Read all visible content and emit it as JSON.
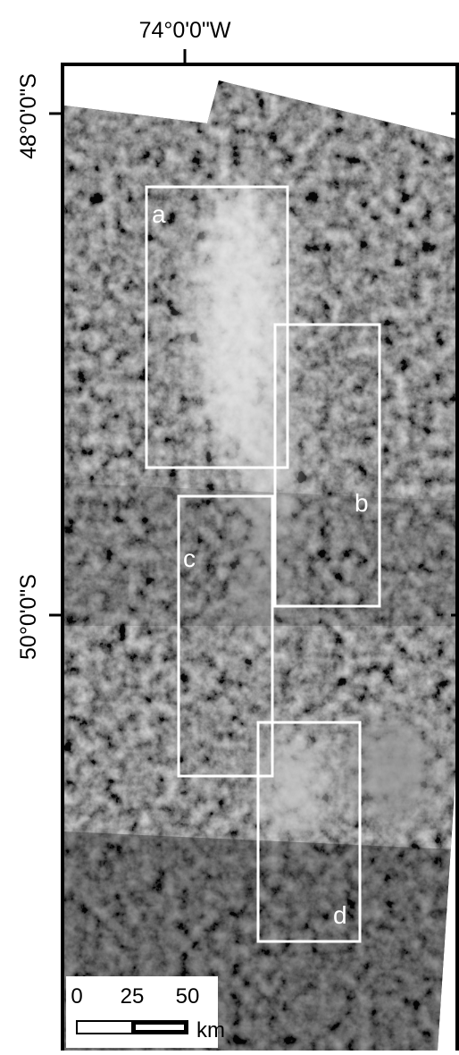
{
  "map": {
    "longitude_label": "74°0'0\"W",
    "latitude_labels": [
      "48°0'0\"S",
      "50°0'0\"S"
    ],
    "boxes": [
      {
        "label": "a"
      },
      {
        "label": "b"
      },
      {
        "label": "c"
      },
      {
        "label": "d"
      }
    ],
    "scale_bar": {
      "ticks": [
        "0",
        "25",
        "50"
      ],
      "unit": "km"
    }
  }
}
